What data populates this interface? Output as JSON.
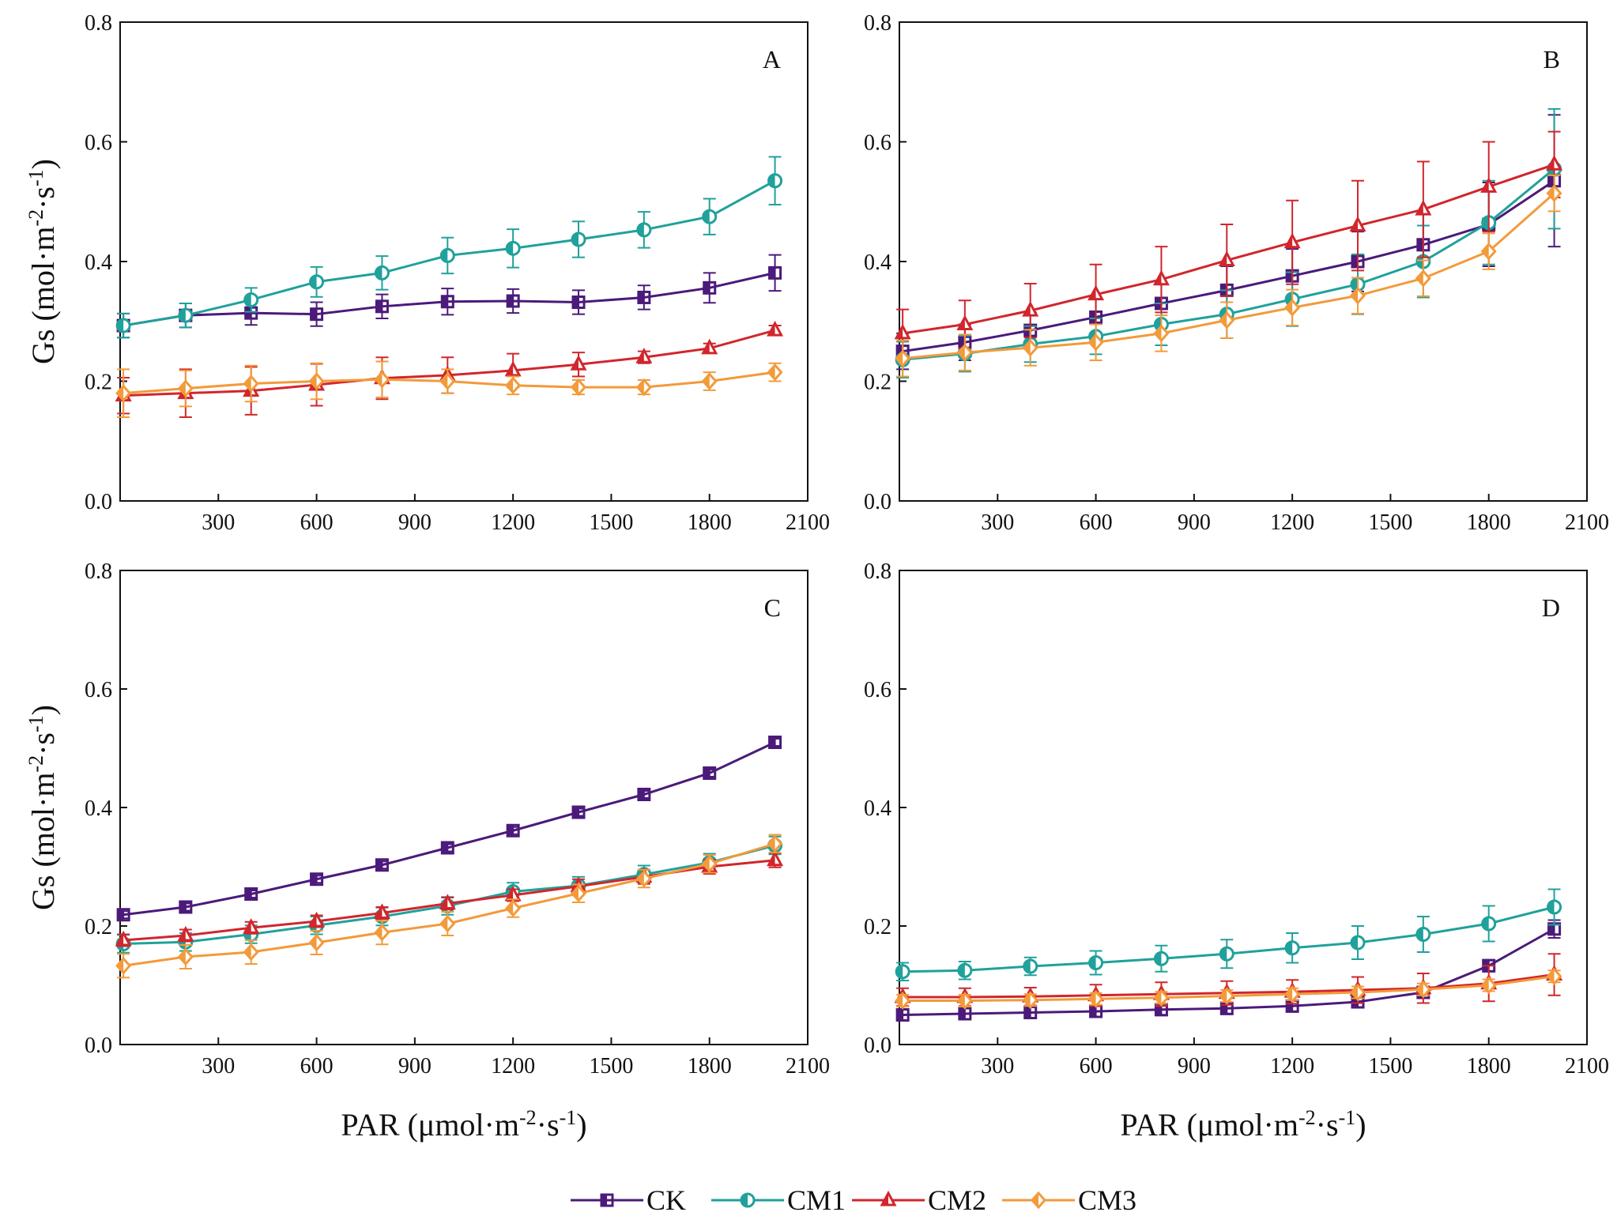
{
  "series_styles": [
    {
      "name": "CK",
      "color": "#4b1a7a",
      "marker": "square"
    },
    {
      "name": "CM1",
      "color": "#20a19b",
      "marker": "circle"
    },
    {
      "name": "CM2",
      "color": "#d1262c",
      "marker": "triangle"
    },
    {
      "name": "CM3",
      "color": "#f39a3a",
      "marker": "diamond"
    }
  ],
  "legend_labels": [
    "CK",
    "CM1",
    "CM2",
    "CM3"
  ],
  "chart_data": [
    {
      "type": "line",
      "panel": "A",
      "xlim": [
        0,
        2100
      ],
      "ylim": [
        0,
        0.8
      ],
      "xticks": [
        "300",
        "600",
        "900",
        "1200",
        "1500",
        "1800",
        "2100"
      ],
      "yticks": [
        "0.0",
        "0.2",
        "0.4",
        "0.6",
        "0.8"
      ],
      "ylabel": "Gs (mol·m",
      "ylabel_sup1": "-2",
      "ylabel_mid": "·s",
      "ylabel_sup2": "-1",
      "ylabel_end": ")",
      "xlabel": "",
      "x": [
        10,
        200,
        400,
        600,
        800,
        1000,
        1200,
        1400,
        1600,
        1800,
        2000
      ],
      "series": [
        {
          "name": "CK",
          "values": [
            0.293,
            0.31,
            0.314,
            0.312,
            0.325,
            0.333,
            0.334,
            0.332,
            0.34,
            0.356,
            0.381
          ],
          "errors": [
            0.02,
            0.02,
            0.02,
            0.02,
            0.02,
            0.022,
            0.02,
            0.02,
            0.02,
            0.025,
            0.03
          ]
        },
        {
          "name": "CM1",
          "values": [
            0.293,
            0.31,
            0.336,
            0.366,
            0.381,
            0.41,
            0.422,
            0.437,
            0.453,
            0.475,
            0.535
          ],
          "errors": [
            0.02,
            0.02,
            0.02,
            0.025,
            0.028,
            0.03,
            0.032,
            0.03,
            0.03,
            0.03,
            0.04
          ]
        },
        {
          "name": "CM2",
          "values": [
            0.176,
            0.18,
            0.184,
            0.194,
            0.205,
            0.21,
            0.218,
            0.228,
            0.24,
            0.255,
            0.285
          ],
          "errors": [
            0.03,
            0.04,
            0.04,
            0.035,
            0.035,
            0.03,
            0.028,
            0.02,
            0.01,
            0.008,
            0.008
          ]
        },
        {
          "name": "CM3",
          "values": [
            0.18,
            0.188,
            0.196,
            0.2,
            0.203,
            0.2,
            0.193,
            0.19,
            0.19,
            0.2,
            0.215
          ],
          "errors": [
            0.04,
            0.03,
            0.03,
            0.03,
            0.03,
            0.02,
            0.015,
            0.012,
            0.012,
            0.015,
            0.015
          ]
        }
      ]
    },
    {
      "type": "line",
      "panel": "B",
      "xlim": [
        0,
        2100
      ],
      "ylim": [
        0,
        0.8
      ],
      "xticks": [
        "300",
        "600",
        "900",
        "1200",
        "1500",
        "1800",
        "2100"
      ],
      "yticks": [
        "0.0",
        "0.2",
        "0.4",
        "0.6",
        "0.8"
      ],
      "ylabel": "",
      "xlabel": "",
      "x": [
        10,
        200,
        400,
        600,
        800,
        1000,
        1200,
        1400,
        1600,
        1800,
        2000
      ],
      "series": [
        {
          "name": "CK",
          "values": [
            0.25,
            0.265,
            0.285,
            0.307,
            0.33,
            0.352,
            0.376,
            0.4,
            0.428,
            0.462,
            0.535
          ],
          "errors": [
            0.03,
            0.03,
            0.03,
            0.03,
            0.035,
            0.04,
            0.045,
            0.05,
            0.055,
            0.07,
            0.11
          ]
        },
        {
          "name": "CM1",
          "values": [
            0.236,
            0.246,
            0.262,
            0.275,
            0.295,
            0.312,
            0.337,
            0.362,
            0.4,
            0.465,
            0.555
          ],
          "errors": [
            0.03,
            0.03,
            0.03,
            0.03,
            0.035,
            0.04,
            0.045,
            0.05,
            0.06,
            0.07,
            0.1
          ]
        },
        {
          "name": "CM2",
          "values": [
            0.28,
            0.295,
            0.318,
            0.345,
            0.37,
            0.402,
            0.432,
            0.46,
            0.487,
            0.525,
            0.562
          ],
          "errors": [
            0.04,
            0.04,
            0.045,
            0.05,
            0.055,
            0.06,
            0.07,
            0.075,
            0.08,
            0.075,
            0.055
          ]
        },
        {
          "name": "CM3",
          "values": [
            0.238,
            0.248,
            0.256,
            0.265,
            0.28,
            0.302,
            0.323,
            0.343,
            0.372,
            0.417,
            0.514
          ],
          "errors": [
            0.03,
            0.03,
            0.03,
            0.03,
            0.03,
            0.03,
            0.03,
            0.03,
            0.03,
            0.03,
            0.03
          ]
        }
      ]
    },
    {
      "type": "line",
      "panel": "C",
      "xlim": [
        0,
        2100
      ],
      "ylim": [
        0,
        0.8
      ],
      "xticks": [
        "300",
        "600",
        "900",
        "1200",
        "1500",
        "1800",
        "2100"
      ],
      "yticks": [
        "0.0",
        "0.2",
        "0.4",
        "0.6",
        "0.8"
      ],
      "ylabel": "Gs (mol·m",
      "ylabel_sup1": "-2",
      "ylabel_mid": "·s",
      "ylabel_sup2": "-1",
      "ylabel_end": ")",
      "xlabel": "PAR (μmol·m",
      "xlabel_sup1": "-2",
      "xlabel_mid": "·s",
      "xlabel_sup2": "-1",
      "xlabel_end": ")",
      "x": [
        10,
        200,
        400,
        600,
        800,
        1000,
        1200,
        1400,
        1600,
        1800,
        2000
      ],
      "series": [
        {
          "name": "CK",
          "values": [
            0.219,
            0.232,
            0.254,
            0.279,
            0.303,
            0.332,
            0.361,
            0.392,
            0.422,
            0.458,
            0.51
          ],
          "errors": [
            0.006,
            0.006,
            0.006,
            0.006,
            0.006,
            0.006,
            0.006,
            0.006,
            0.006,
            0.006,
            0.006
          ]
        },
        {
          "name": "CM1",
          "values": [
            0.17,
            0.173,
            0.186,
            0.201,
            0.216,
            0.234,
            0.258,
            0.268,
            0.287,
            0.307,
            0.336
          ],
          "errors": [
            0.015,
            0.015,
            0.015,
            0.015,
            0.015,
            0.015,
            0.015,
            0.015,
            0.015,
            0.015,
            0.015
          ]
        },
        {
          "name": "CM2",
          "values": [
            0.176,
            0.184,
            0.197,
            0.208,
            0.222,
            0.238,
            0.252,
            0.267,
            0.283,
            0.3,
            0.311
          ],
          "errors": [
            0.01,
            0.01,
            0.01,
            0.01,
            0.01,
            0.01,
            0.01,
            0.012,
            0.012,
            0.012,
            0.012
          ]
        },
        {
          "name": "CM3",
          "values": [
            0.133,
            0.148,
            0.156,
            0.172,
            0.189,
            0.204,
            0.23,
            0.255,
            0.28,
            0.305,
            0.339
          ],
          "errors": [
            0.02,
            0.02,
            0.02,
            0.02,
            0.02,
            0.02,
            0.015,
            0.015,
            0.015,
            0.015,
            0.015
          ]
        }
      ]
    },
    {
      "type": "line",
      "panel": "D",
      "xlim": [
        0,
        2100
      ],
      "ylim": [
        0,
        0.8
      ],
      "xticks": [
        "300",
        "600",
        "900",
        "1200",
        "1500",
        "1800",
        "2100"
      ],
      "yticks": [
        "0.0",
        "0.2",
        "0.4",
        "0.6",
        "0.8"
      ],
      "ylabel": "",
      "xlabel": "PAR (μmol·m",
      "xlabel_sup1": "-2",
      "xlabel_mid": "·s",
      "xlabel_sup2": "-1",
      "xlabel_end": ")",
      "x": [
        10,
        200,
        400,
        600,
        800,
        1000,
        1200,
        1400,
        1600,
        1800,
        2000
      ],
      "series": [
        {
          "name": "CK",
          "values": [
            0.05,
            0.052,
            0.054,
            0.056,
            0.059,
            0.061,
            0.065,
            0.072,
            0.088,
            0.133,
            0.195
          ],
          "errors": [
            0.01,
            0.01,
            0.01,
            0.01,
            0.01,
            0.01,
            0.01,
            0.01,
            0.01,
            0.01,
            0.015
          ]
        },
        {
          "name": "CM1",
          "values": [
            0.123,
            0.125,
            0.132,
            0.138,
            0.145,
            0.153,
            0.163,
            0.172,
            0.186,
            0.204,
            0.232
          ],
          "errors": [
            0.015,
            0.015,
            0.015,
            0.02,
            0.022,
            0.024,
            0.025,
            0.028,
            0.03,
            0.03,
            0.03
          ]
        },
        {
          "name": "CM2",
          "values": [
            0.08,
            0.08,
            0.081,
            0.083,
            0.085,
            0.087,
            0.089,
            0.092,
            0.095,
            0.103,
            0.118
          ],
          "errors": [
            0.015,
            0.015,
            0.015,
            0.018,
            0.02,
            0.02,
            0.02,
            0.022,
            0.025,
            0.03,
            0.035
          ]
        },
        {
          "name": "CM3",
          "values": [
            0.074,
            0.074,
            0.075,
            0.077,
            0.079,
            0.082,
            0.085,
            0.088,
            0.093,
            0.1,
            0.115
          ],
          "errors": [
            0.01,
            0.01,
            0.01,
            0.01,
            0.01,
            0.01,
            0.01,
            0.01,
            0.01,
            0.01,
            0.01
          ]
        }
      ]
    }
  ]
}
